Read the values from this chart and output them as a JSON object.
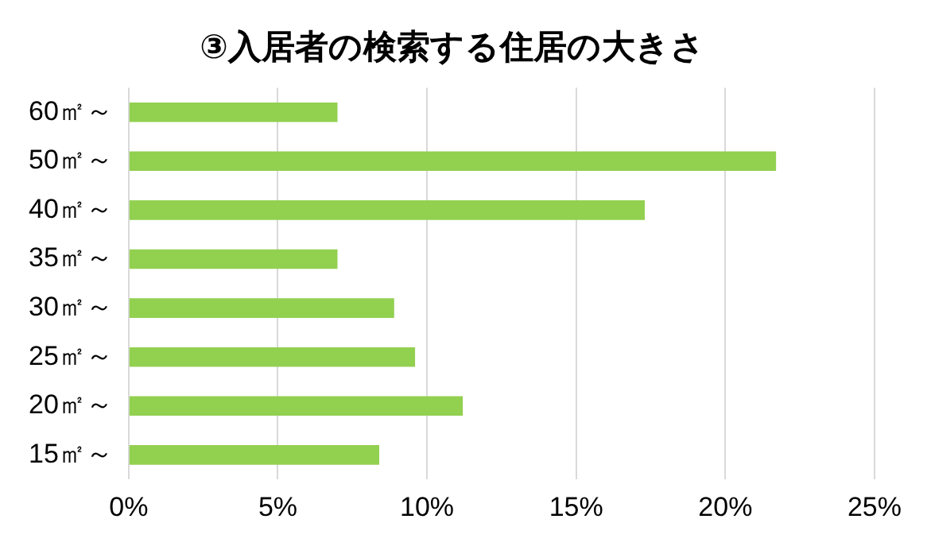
{
  "chart_data": {
    "type": "bar",
    "title": "③入居者の検索する住居の大きさ",
    "orientation": "horizontal",
    "categories": [
      "60㎡～",
      "50㎡～",
      "40㎡～",
      "35㎡～",
      "30㎡～",
      "25㎡～",
      "20㎡～",
      "15㎡～"
    ],
    "values": [
      7.0,
      21.7,
      17.3,
      7.0,
      8.9,
      9.6,
      11.2,
      8.4
    ],
    "color": "#92d050",
    "xlim": [
      0,
      25
    ],
    "xticks": [
      {
        "value": 0,
        "label": "0%"
      },
      {
        "value": 5,
        "label": "5%"
      },
      {
        "value": 10,
        "label": "10%"
      },
      {
        "value": 15,
        "label": "15%"
      },
      {
        "value": 20,
        "label": "20%"
      },
      {
        "value": 25,
        "label": "25%"
      }
    ],
    "grid": "x",
    "legend": false
  }
}
